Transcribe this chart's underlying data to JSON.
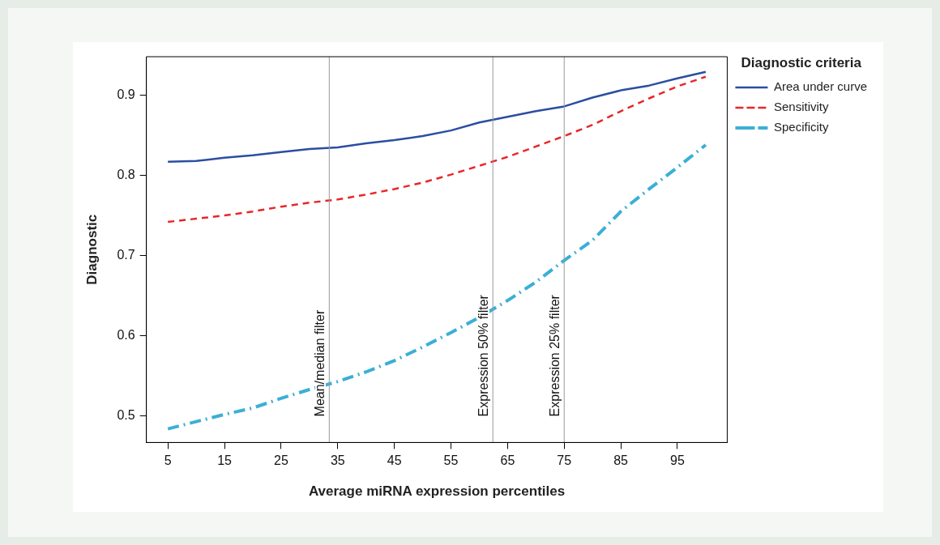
{
  "chart_data": {
    "type": "line",
    "xlabel": "Average miRNA expression percentiles",
    "ylabel": "Diagnostic",
    "legend_title": "Diagnostic criteria",
    "legend": "right",
    "grid": false,
    "marker": "none",
    "x": [
      5,
      10,
      15,
      20,
      25,
      30,
      35,
      40,
      45,
      50,
      55,
      60,
      65,
      70,
      75,
      80,
      85,
      90,
      95,
      100
    ],
    "xlim": [
      1.2,
      103.8
    ],
    "xticks": [
      5,
      15,
      25,
      35,
      45,
      55,
      65,
      75,
      85,
      95
    ],
    "ylim": [
      0.467,
      0.948
    ],
    "yticks": [
      0.5,
      0.6,
      0.7,
      0.8,
      0.9
    ],
    "series": [
      {
        "name": "Area under curve",
        "color": "#2a4ea2",
        "line_style": "solid",
        "values": [
          0.817,
          0.818,
          0.822,
          0.825,
          0.829,
          0.833,
          0.835,
          0.84,
          0.844,
          0.849,
          0.856,
          0.866,
          0.873,
          0.88,
          0.886,
          0.897,
          0.906,
          0.912,
          0.921,
          0.929
        ]
      },
      {
        "name": "Sensitivity",
        "color": "#e8262b",
        "line_style": "dashed",
        "values": [
          0.742,
          0.746,
          0.75,
          0.755,
          0.761,
          0.766,
          0.77,
          0.776,
          0.783,
          0.791,
          0.801,
          0.812,
          0.823,
          0.836,
          0.849,
          0.863,
          0.88,
          0.896,
          0.911,
          0.923
        ]
      },
      {
        "name": "Specificity",
        "color": "#3bafd6",
        "line_style": "dashdot",
        "values": [
          0.484,
          0.493,
          0.502,
          0.51,
          0.522,
          0.533,
          0.543,
          0.555,
          0.569,
          0.586,
          0.604,
          0.623,
          0.644,
          0.667,
          0.694,
          0.719,
          0.755,
          0.783,
          0.81,
          0.838
        ]
      }
    ],
    "ref_lines": [
      {
        "axis": "x",
        "value": 33.5,
        "label": "Mean/median filter",
        "color": "#999999"
      },
      {
        "axis": "x",
        "value": 62.4,
        "label": "Expression 50% filter",
        "color": "#999999"
      },
      {
        "axis": "x",
        "value": 75,
        "label": "Expression 25% filter",
        "color": "#999999"
      }
    ]
  }
}
